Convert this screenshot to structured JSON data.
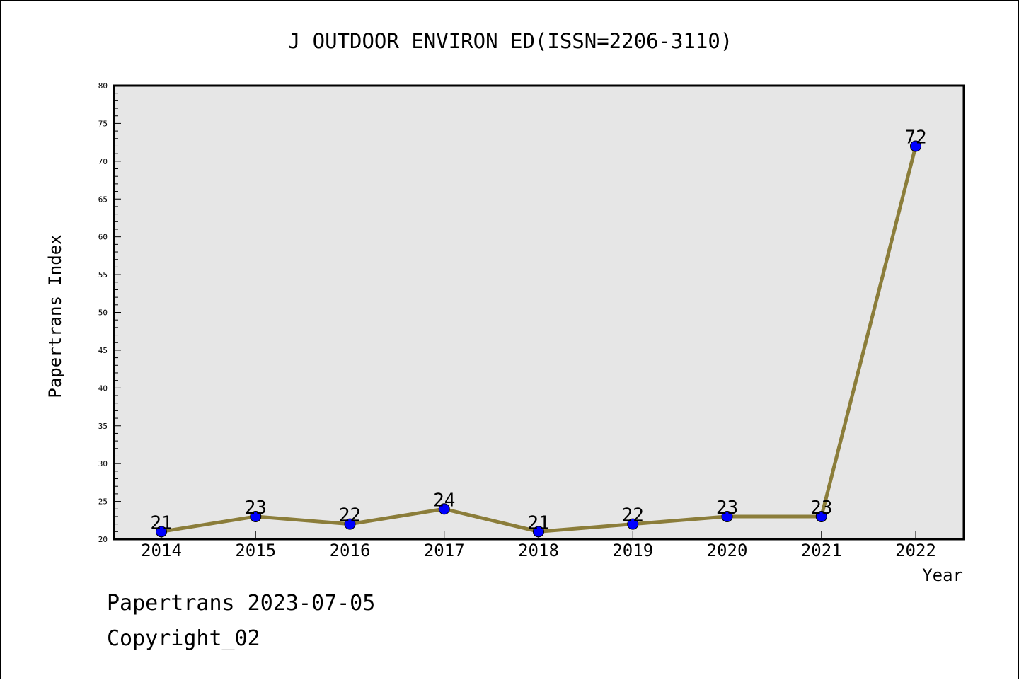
{
  "chart_data": {
    "type": "line",
    "title": "J OUTDOOR ENVIRON ED(ISSN=2206-3110)",
    "xlabel": "Year",
    "ylabel": "Papertrans Index",
    "categories": [
      "2014",
      "2015",
      "2016",
      "2017",
      "2018",
      "2019",
      "2020",
      "2021",
      "2022"
    ],
    "series": [
      {
        "values": [
          21,
          23,
          22,
          24,
          21,
          22,
          23,
          23,
          72
        ]
      }
    ],
    "data_labels": [
      "21",
      "23",
      "22",
      "24",
      "21",
      "22",
      "23",
      "23",
      "72"
    ],
    "ylim": [
      20,
      80
    ],
    "y_major_ticks": [
      "20",
      "25",
      "30",
      "35",
      "40",
      "45",
      "50",
      "55",
      "60",
      "65",
      "70",
      "75",
      "80"
    ],
    "grid": false,
    "legend": "none",
    "colors": {
      "line": "#8b7d3a",
      "marker": "#0000ff",
      "plot_background": "#e6e6e6"
    }
  },
  "footer": {
    "line1": "Papertrans 2023-07-05",
    "line2": "Copyright_02"
  }
}
